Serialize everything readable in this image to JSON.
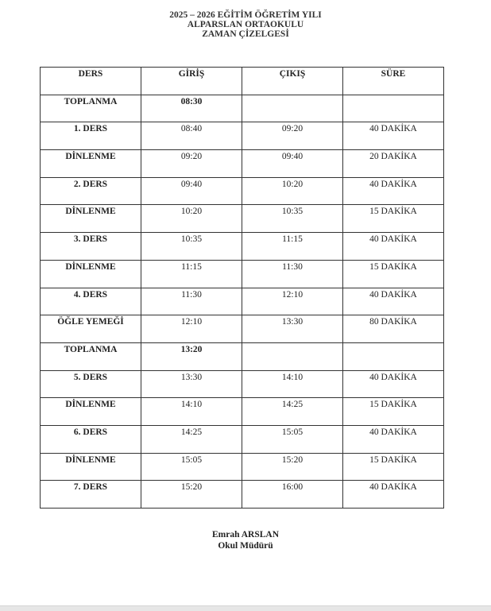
{
  "header": {
    "line1": "2025 – 2026 EĞİTİM ÖĞRETİM YILI",
    "line2": "ALPARSLAN ORTAOKULU",
    "line3": "ZAMAN ÇİZELGESİ"
  },
  "table": {
    "columns": [
      "DERS",
      "GİRİŞ",
      "ÇIKIŞ",
      "SÜRE"
    ],
    "rows": [
      {
        "ders": "TOPLANMA",
        "giris": "08:30",
        "cikis": "",
        "sure": "",
        "bold_time": true
      },
      {
        "ders": "1. DERS",
        "giris": "08:40",
        "cikis": "09:20",
        "sure": "40 DAKİKA"
      },
      {
        "ders": "DİNLENME",
        "giris": "09:20",
        "cikis": "09:40",
        "sure": "20 DAKİKA"
      },
      {
        "ders": "2. DERS",
        "giris": "09:40",
        "cikis": "10:20",
        "sure": "40 DAKİKA"
      },
      {
        "ders": "DİNLENME",
        "giris": "10:20",
        "cikis": "10:35",
        "sure": "15 DAKİKA"
      },
      {
        "ders": "3. DERS",
        "giris": "10:35",
        "cikis": "11:15",
        "sure": "40 DAKİKA"
      },
      {
        "ders": "DİNLENME",
        "giris": "11:15",
        "cikis": "11:30",
        "sure": "15 DAKİKA"
      },
      {
        "ders": "4. DERS",
        "giris": "11:30",
        "cikis": "12:10",
        "sure": "40 DAKİKA"
      },
      {
        "ders": "ÖĞLE YEMEĞİ",
        "giris": "12:10",
        "cikis": "13:30",
        "sure": "80 DAKİKA"
      },
      {
        "ders": "TOPLANMA",
        "giris": "13:20",
        "cikis": "",
        "sure": "",
        "bold_time": true
      },
      {
        "ders": "5. DERS",
        "giris": "13:30",
        "cikis": "14:10",
        "sure": "40 DAKİKA"
      },
      {
        "ders": "DİNLENME",
        "giris": "14:10",
        "cikis": "14:25",
        "sure": "15 DAKİKA"
      },
      {
        "ders": "6. DERS",
        "giris": "14:25",
        "cikis": "15:05",
        "sure": "40 DAKİKA"
      },
      {
        "ders": "DİNLENME",
        "giris": "15:05",
        "cikis": "15:20",
        "sure": "15 DAKİKA"
      },
      {
        "ders": "7. DERS",
        "giris": "15:20",
        "cikis": "16:00",
        "sure": "40 DAKİKA"
      }
    ]
  },
  "signature": {
    "name": "Emrah ARSLAN",
    "role": "Okul Müdürü"
  }
}
